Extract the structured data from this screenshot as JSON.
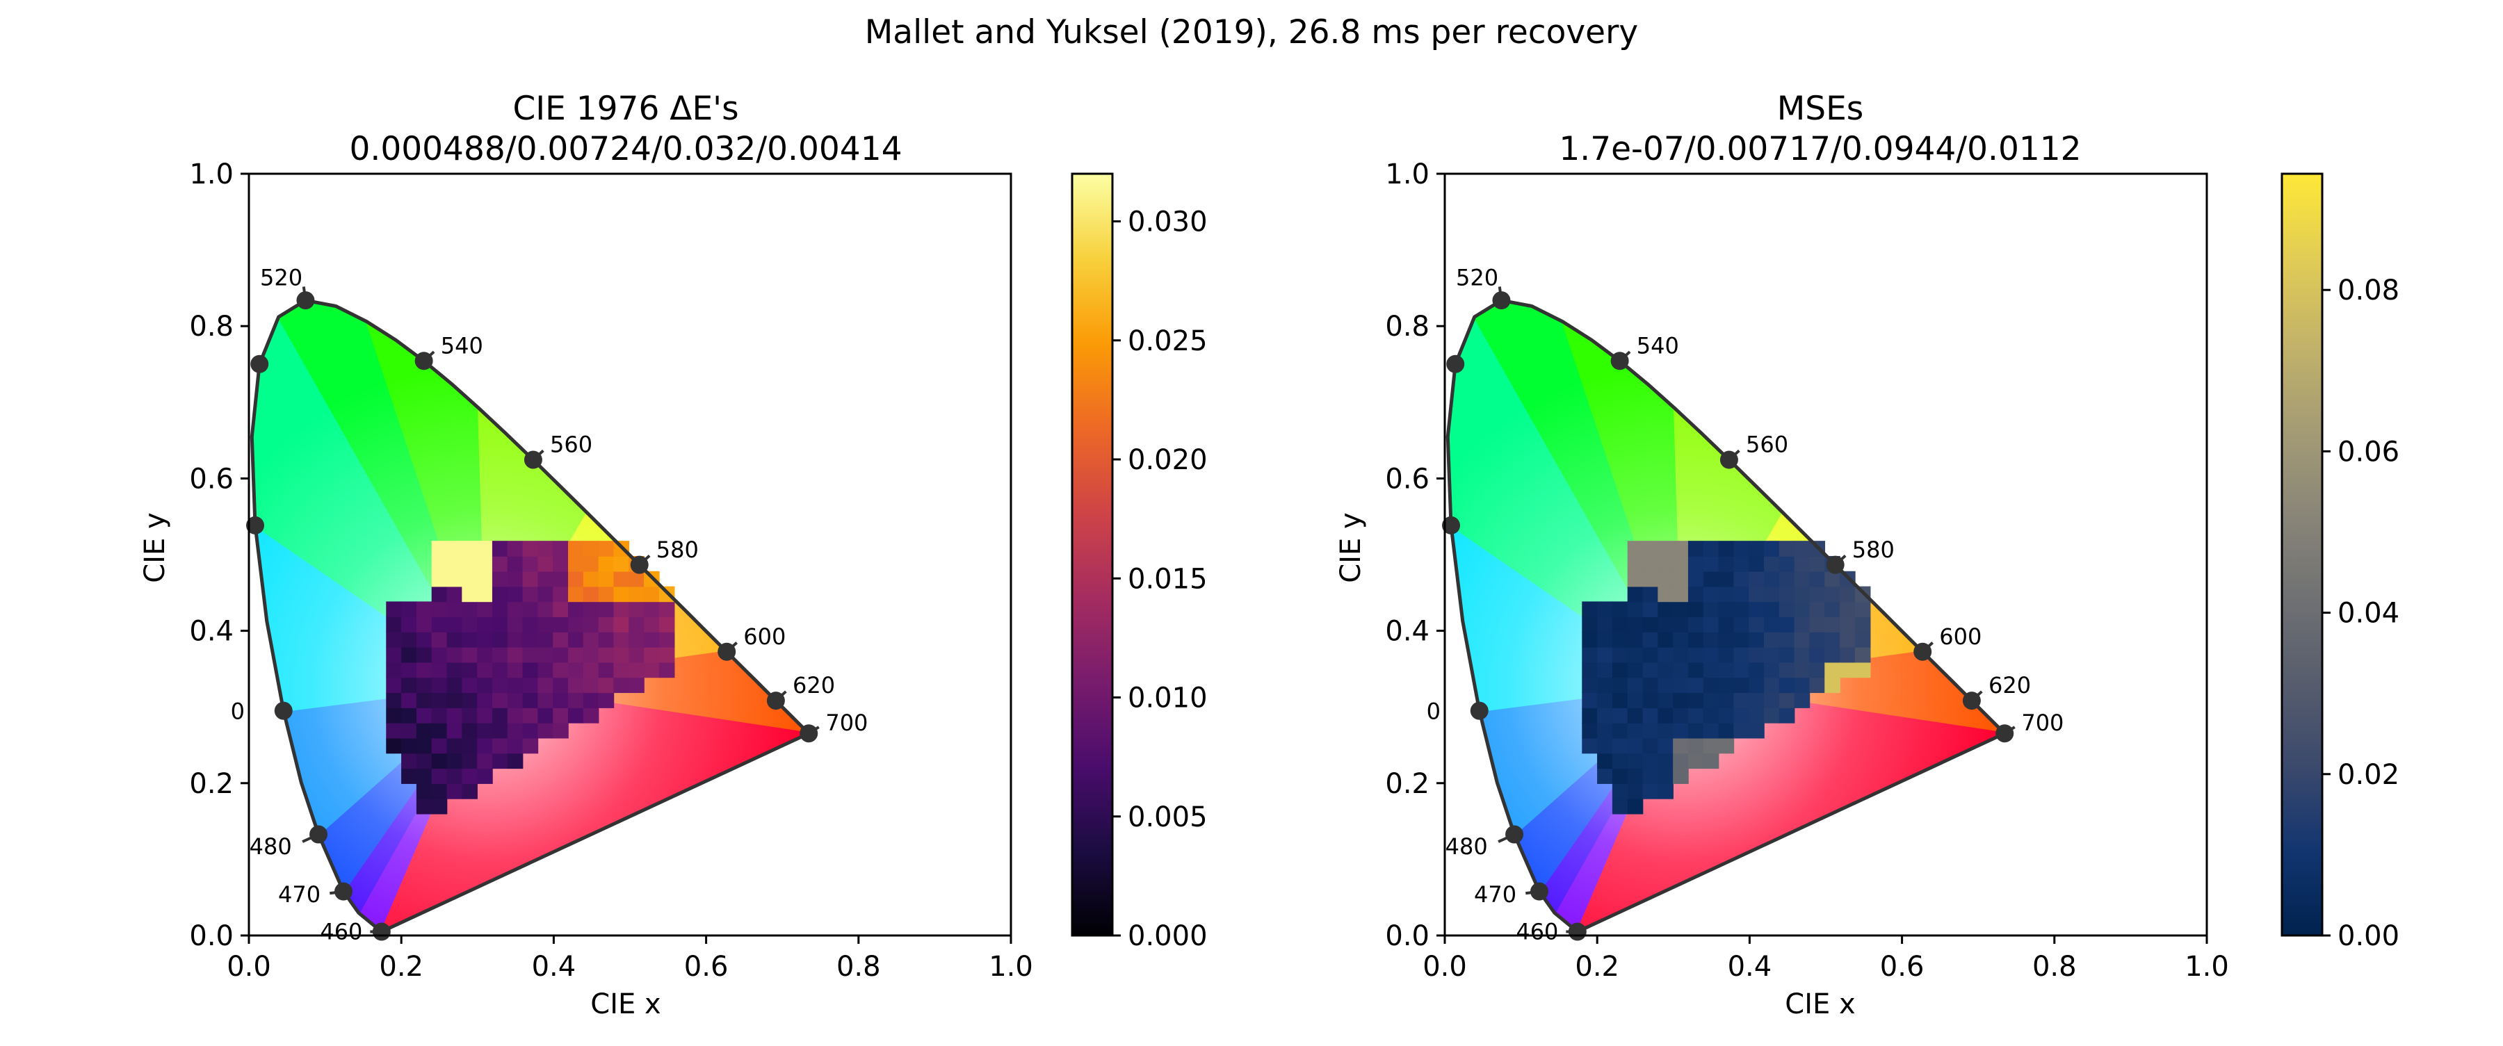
{
  "figure": {
    "suptitle": "Mallet and Yuksel (2019), 26.8 ms per recovery"
  },
  "colors": {
    "cmap_left": [
      "#000004",
      "#1b0c41",
      "#4a0c6b",
      "#781c6d",
      "#a52c60",
      "#cf4446",
      "#ed6925",
      "#fb9b06",
      "#f7d13d",
      "#fcffa4"
    ],
    "cmap_right": [
      "#00224e",
      "#123570",
      "#3b496c",
      "#575d6d",
      "#707173",
      "#8a8678",
      "#a59c74",
      "#c3b369",
      "#e1cc55",
      "#fee838"
    ],
    "locus_stroke": "#333333",
    "marker": "#333333"
  },
  "chart_data": [
    {
      "type": "heatmap",
      "title": "CIE 1976 ΔE's",
      "subtitle": "0.000488/0.00724/0.032/0.00414",
      "xlabel": "CIE x",
      "ylabel": "CIE y",
      "xlim": [
        0.0,
        1.0
      ],
      "ylim": [
        0.0,
        1.0
      ],
      "xticks": [
        "0.0",
        "0.2",
        "0.4",
        "0.6",
        "0.8",
        "1.0"
      ],
      "yticks": [
        "0.0",
        "0.2",
        "0.4",
        "0.6",
        "0.8",
        "1.0"
      ],
      "grid": false,
      "colorbar": {
        "range": [
          0.0,
          0.032
        ],
        "ticks": [
          0.0,
          0.005,
          0.01,
          0.015,
          0.02,
          0.025,
          0.03
        ],
        "tick_labels": [
          "0.000",
          "0.005",
          "0.010",
          "0.015",
          "0.020",
          "0.025",
          "0.030"
        ],
        "colormap": "inferno"
      },
      "statistics": {
        "min": 0.000488,
        "mean": 0.00724,
        "max": 0.032,
        "std": 0.00414
      },
      "error_region": "spectral locus interior, x 0.18–0.55, y 0.14–0.51",
      "spectral_locus": {
        "labels": [
          "460",
          "470",
          "480",
          "520",
          "540",
          "560",
          "580",
          "600",
          "620",
          "700"
        ],
        "partial_label": "0"
      }
    },
    {
      "type": "heatmap",
      "title": "MSEs",
      "subtitle": "1.7e-07/0.00717/0.0944/0.0112",
      "xlabel": "CIE x",
      "ylabel": "CIE y",
      "xlim": [
        0.0,
        1.0
      ],
      "ylim": [
        0.0,
        1.0
      ],
      "xticks": [
        "0.0",
        "0.2",
        "0.4",
        "0.6",
        "0.8",
        "1.0"
      ],
      "yticks": [
        "0.0",
        "0.2",
        "0.4",
        "0.6",
        "0.8",
        "1.0"
      ],
      "grid": false,
      "colorbar": {
        "range": [
          0.0,
          0.0944
        ],
        "ticks": [
          0.0,
          0.02,
          0.04,
          0.06,
          0.08
        ],
        "tick_labels": [
          "0.00",
          "0.02",
          "0.04",
          "0.06",
          "0.08"
        ],
        "colormap": "cividis"
      },
      "statistics": {
        "min": 1.7e-07,
        "mean": 0.00717,
        "max": 0.0944,
        "std": 0.0112
      },
      "error_region": "spectral locus interior, x 0.18–0.55, y 0.14–0.51",
      "spectral_locus": {
        "labels": [
          "460",
          "470",
          "480",
          "520",
          "540",
          "560",
          "580",
          "600",
          "620",
          "700"
        ],
        "partial_label": "0"
      }
    }
  ]
}
